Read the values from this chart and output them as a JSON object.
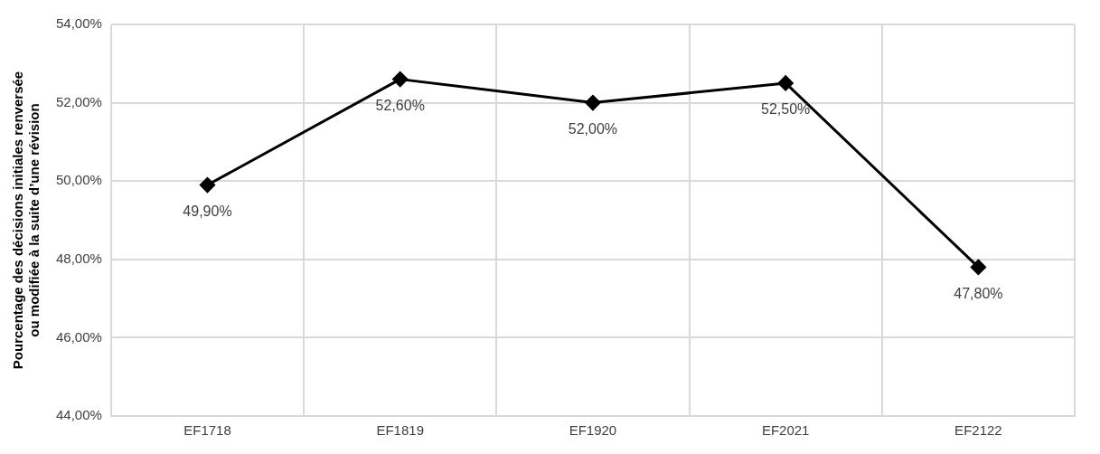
{
  "chart_data": {
    "type": "line",
    "ylabel": "Pourcentage des décisions initiales renversée ou modifiée à la suite d’une révision",
    "categories": [
      "EF1718",
      "EF1819",
      "EF1920",
      "EF2021",
      "EF2122"
    ],
    "series": [
      {
        "color": "#000000",
        "values": [
          49.9,
          52.6,
          52.0,
          52.5,
          47.8
        ],
        "value_labels": [
          "49,90%",
          "52,60%",
          "52,00%",
          "52,50%",
          "47,80%"
        ]
      }
    ],
    "ylim": [
      44,
      54
    ],
    "yticks": [
      {
        "value": 44,
        "label": "44,00%"
      },
      {
        "value": 46,
        "label": "46,00%"
      },
      {
        "value": 48,
        "label": "48,00%"
      },
      {
        "value": 50,
        "label": "50,00%"
      },
      {
        "value": 52,
        "label": "52,00%"
      },
      {
        "value": 54,
        "label": "54,00%"
      }
    ],
    "grid": true,
    "marker": "diamond",
    "line_style": "solid",
    "legend": false
  }
}
